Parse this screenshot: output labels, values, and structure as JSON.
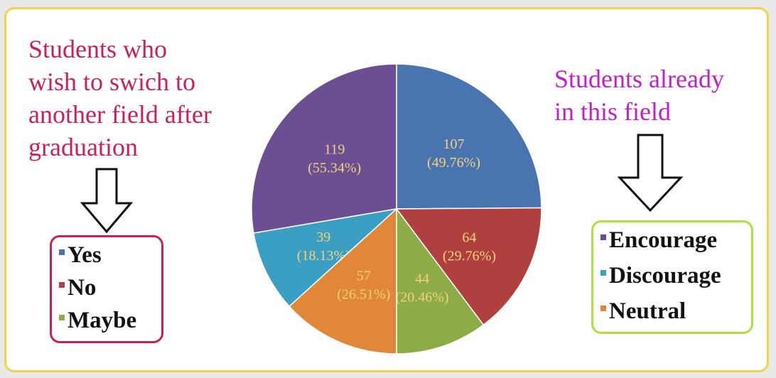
{
  "left_caption": "Students who\nwish to swich to\nanother field after\ngraduation",
  "right_caption": "Students already\nin this field",
  "colors": {
    "left_caption": "#c8205a",
    "right_caption": "#c020c8",
    "panel_border": "#f2d24a",
    "left_legend_border": "#c8205a",
    "right_legend_border": "#b0e03c",
    "slice_label": "#f3d37a"
  },
  "chart_data": [
    {
      "type": "pie",
      "title": "",
      "note": "Right half of pie",
      "slices": [
        {
          "label": "Yes",
          "value": 107,
          "percent": "49.76%",
          "color": "#4a74b0"
        },
        {
          "label": "No",
          "value": 64,
          "percent": "29.76%",
          "color": "#b0403f"
        },
        {
          "label": "Maybe",
          "value": 44,
          "percent": "20.46%",
          "color": "#8dab46"
        }
      ],
      "legend_placement": "left"
    },
    {
      "type": "pie",
      "title": "",
      "note": "Left half of pie",
      "slices": [
        {
          "label": "Encourage",
          "value": 119,
          "percent": "55.34%",
          "color": "#6c4e93"
        },
        {
          "label": "Discourage",
          "value": 39,
          "percent": "18.13%",
          "color": "#3a9fc2"
        },
        {
          "label": "Neutral",
          "value": 57,
          "percent": "26.51%",
          "color": "#e0873a"
        }
      ],
      "legend_placement": "right"
    }
  ],
  "legend_left": [
    {
      "label": "Yes",
      "color": "#4a74b0"
    },
    {
      "label": "No",
      "color": "#b0403f"
    },
    {
      "label": "Maybe",
      "color": "#8dab46"
    }
  ],
  "legend_right": [
    {
      "label": "Encourage",
      "color": "#6c4e93"
    },
    {
      "label": "Discourage",
      "color": "#3a9fc2"
    },
    {
      "label": "Neutral",
      "color": "#e0873a"
    }
  ]
}
